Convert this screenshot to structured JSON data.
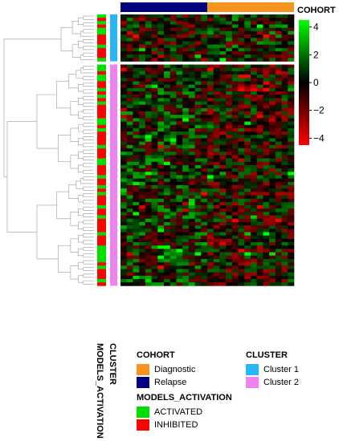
{
  "chart_data": {
    "type": "heatmap",
    "colorbar": {
      "ticks": [
        "4",
        "2",
        "0",
        "−2",
        "−4"
      ],
      "values": [
        4,
        2,
        0,
        -2,
        -4
      ],
      "range": [
        -4.5,
        4.5
      ],
      "colors": {
        "high": "#00ff00",
        "mid": "#000000",
        "low": "#ff0000"
      }
    },
    "column_annotation": {
      "label": "COHORT",
      "segments": [
        {
          "level": "Relapse",
          "count": 14
        },
        {
          "level": "Diagnostic",
          "count": 14
        }
      ]
    },
    "row_annotations": [
      {
        "label": "MODELS_ACTIVATION"
      },
      {
        "label": "CLUSTER"
      }
    ],
    "row_groups": [
      {
        "cluster": "Cluster 1",
        "rows": 14
      },
      {
        "cluster": "Cluster 2",
        "rows": 66
      }
    ],
    "columns": 28,
    "dendrogram": "rows",
    "legends": [
      {
        "title": "COHORT",
        "items": [
          {
            "label": "Diagnostic",
            "color": "#f7941d"
          },
          {
            "label": "Relapse",
            "color": "#000080"
          }
        ]
      },
      {
        "title": "CLUSTER",
        "items": [
          {
            "label": "Cluster 1",
            "color": "#29b6f6"
          },
          {
            "label": "Cluster 2",
            "color": "#ee82ee"
          }
        ]
      },
      {
        "title": "MODELS_ACTIVATION",
        "items": [
          {
            "label": "ACTIVATED",
            "color": "#00e000"
          },
          {
            "label": "INHIBITED",
            "color": "#ff0000"
          }
        ]
      }
    ]
  }
}
